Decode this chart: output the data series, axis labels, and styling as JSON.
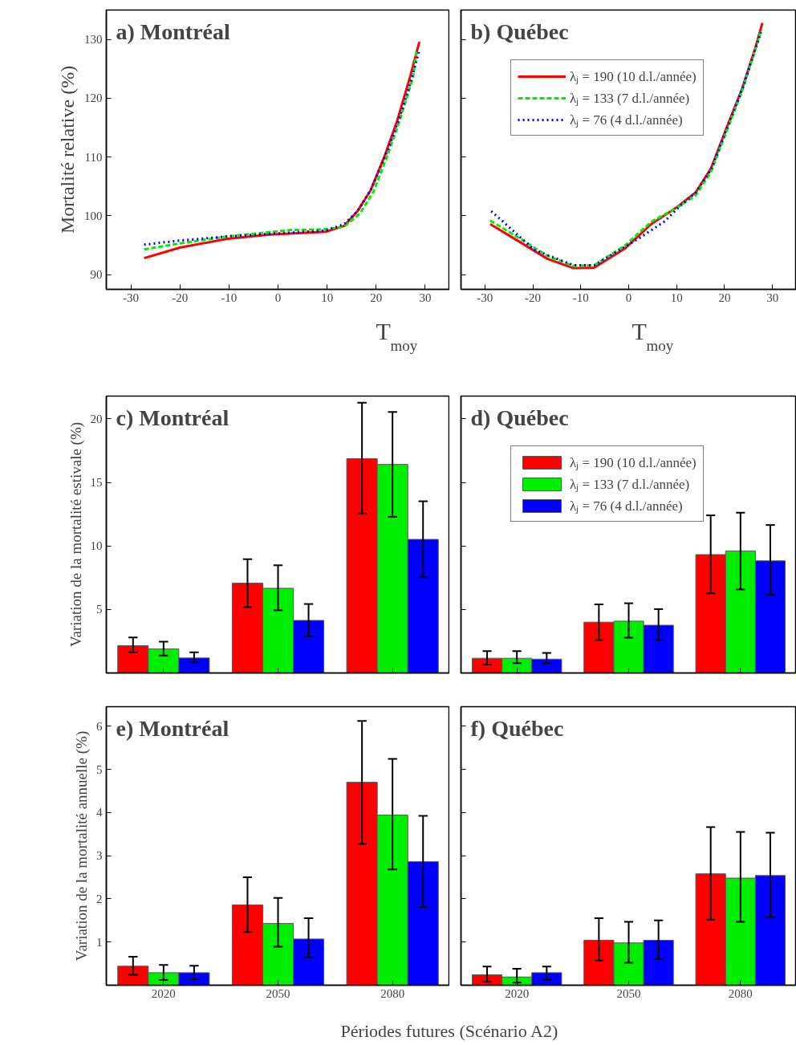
{
  "chart_data": [
    {
      "type": "line",
      "title": "a) Montréal",
      "xlabel": "T$_{moy}$",
      "ylabel": "Mortalité relative (%)",
      "xlim": [
        -35,
        35
      ],
      "ylim": [
        87.5,
        135
      ],
      "xticks": [
        -30,
        -20,
        -10,
        0,
        10,
        20,
        30
      ],
      "yticks": [
        90,
        100,
        110,
        120,
        130
      ],
      "marker": "none",
      "series": [
        {
          "color": "#ff0000",
          "line_style": "solid",
          "x": [
            -27.3,
            -20,
            -10.3,
            -1.7,
            9.7,
            13.5,
            16.2,
            18.9,
            21.6,
            24.3,
            27,
            28.8
          ],
          "values": [
            92.8,
            94.6,
            96.1,
            96.8,
            97.3,
            98.3,
            100.8,
            104.4,
            109.9,
            116.2,
            123.9,
            129.6
          ]
        },
        {
          "color": "#00ee00",
          "line_style": "dashed",
          "x": [
            -27.3,
            -20,
            -10.3,
            2.6,
            9.7,
            13.5,
            16.7,
            19.4,
            22.2,
            24.8,
            27.5,
            28.3
          ],
          "values": [
            94.3,
            95.3,
            96.5,
            97.6,
            97.7,
            98.2,
            100.4,
            104,
            110,
            116.2,
            123.5,
            128.2
          ]
        },
        {
          "color": "#0000ff",
          "line_style": "dotted",
          "x": [
            -27.3,
            -20,
            -10.3,
            9.7,
            13.5,
            16.2,
            18.9,
            22.6,
            25.3,
            27.5,
            28.8
          ],
          "values": [
            95.1,
            95.8,
            96.5,
            97.5,
            98.6,
            100.8,
            104.4,
            111.7,
            118,
            124.1,
            128.2
          ]
        }
      ]
    },
    {
      "type": "line",
      "title": "b) Québec",
      "xlabel": "T$_{moy}$",
      "xlim": [
        -35,
        35
      ],
      "ylim": [
        87.5,
        135
      ],
      "xticks": [
        -30,
        -20,
        -10,
        0,
        10,
        20,
        30
      ],
      "yticks": [
        90,
        100,
        110,
        120,
        130
      ],
      "tick_labels": "x",
      "marker": "none",
      "legend": "top left",
      "series": [
        {
          "name": "λⱼ = 190 (10 d.l./année)",
          "color": "#ff0000",
          "line_style": "solid",
          "x": [
            -28.9,
            -22.4,
            -17,
            -11.5,
            -7.2,
            -0.7,
            4.7,
            10.1,
            14,
            17.2,
            20.4,
            23.7,
            26.4,
            27.9
          ],
          "values": [
            98.6,
            95.4,
            92.7,
            91.1,
            91.2,
            94.5,
            98.6,
            101.5,
            104,
            108.1,
            114.9,
            121.7,
            128.5,
            132.8
          ]
        },
        {
          "name": "λⱼ = 133 (7 d.l./année)",
          "color": "#00ee00",
          "line_style": "dashed",
          "x": [
            -28.9,
            -22.4,
            -17,
            -11.5,
            -7.2,
            -0.7,
            4.7,
            10.1,
            14,
            17.2,
            20.4,
            23.7,
            26.4,
            27.6
          ],
          "values": [
            99.2,
            96,
            93.2,
            91.5,
            91.6,
            95,
            99,
            101.4,
            103.5,
            107.5,
            114.3,
            121.3,
            128.2,
            131.5
          ]
        },
        {
          "name": "λⱼ = 76 (4 d.l./année)",
          "color": "#0000ff",
          "line_style": "dotted",
          "x": [
            -28.7,
            -26.2,
            -19.7,
            -11.5,
            -7.2,
            2,
            7.4,
            10.1,
            14,
            17.2,
            20.4,
            23.7,
            26.4,
            27.6
          ],
          "values": [
            100.8,
            99,
            94.2,
            91.6,
            91.6,
            96.1,
            99,
            101.2,
            104,
            107.9,
            114.7,
            121.5,
            128.3,
            131.2
          ]
        }
      ]
    },
    {
      "type": "bar",
      "title": "c) Montréal",
      "ylabel": "Variation de la mortalité estivale (%)",
      "categories": [
        "2020",
        "2050",
        "2080"
      ],
      "ylim": [
        0,
        21.8
      ],
      "yticks": [
        5,
        10,
        15,
        20
      ],
      "tick_labels": "y",
      "series": [
        {
          "color": "#ff0000",
          "values": [
            2.15,
            7.07,
            16.87
          ],
          "errors": [
            [
              1.62,
              2.8
            ],
            [
              5.19,
              8.96
            ],
            [
              12.56,
              21.28
            ]
          ]
        },
        {
          "color": "#00ee00",
          "values": [
            1.9,
            6.67,
            16.42
          ],
          "errors": [
            [
              1.37,
              2.46
            ],
            [
              4.94,
              8.48
            ],
            [
              12.3,
              20.55
            ]
          ]
        },
        {
          "color": "#0000ff",
          "values": [
            1.18,
            4.14,
            10.52
          ],
          "errors": [
            [
              0.84,
              1.62
            ],
            [
              2.9,
              5.43
            ],
            [
              7.53,
              13.52
            ]
          ]
        }
      ]
    },
    {
      "type": "bar",
      "title": "d) Québec",
      "categories": [
        "2020",
        "2050",
        "2080"
      ],
      "ylim": [
        0,
        21.8
      ],
      "yticks": [
        5,
        10,
        15,
        20
      ],
      "tick_labels": false,
      "legend": "top left",
      "series": [
        {
          "name": "λⱼ = 190 (10 d.l./année)",
          "color": "#ff0000",
          "values": [
            1.16,
            4.0,
            9.32
          ],
          "errors": [
            [
              0.67,
              1.72
            ],
            [
              2.59,
              5.4
            ],
            [
              6.27,
              12.41
            ]
          ]
        },
        {
          "name": "λⱼ = 133 (7 d.l./année)",
          "color": "#00ee00",
          "values": [
            1.16,
            4.08,
            9.61
          ],
          "errors": [
            [
              0.78,
              1.72
            ],
            [
              2.78,
              5.49
            ],
            [
              6.58,
              12.62
            ]
          ]
        },
        {
          "name": "λⱼ = 76 (4 d.l./année)",
          "color": "#0000ff",
          "values": [
            1.09,
            3.76,
            8.83
          ],
          "errors": [
            [
              0.78,
              1.58
            ],
            [
              2.59,
              5.03
            ],
            [
              6.16,
              11.65
            ]
          ]
        }
      ]
    },
    {
      "type": "bar",
      "title": "e) Montréal",
      "xlabel": "Périodes futures (Scénario A2)",
      "ylabel": "Variation de la mortalité annuelle (%)",
      "categories": [
        "2020",
        "2050",
        "2080"
      ],
      "ylim": [
        0,
        6.45
      ],
      "yticks": [
        1,
        2,
        3,
        4,
        5,
        6
      ],
      "series": [
        {
          "color": "#ff0000",
          "values": [
            0.44,
            1.86,
            4.7
          ],
          "errors": [
            [
              0.24,
              0.66
            ],
            [
              1.23,
              2.5
            ],
            [
              3.27,
              6.12
            ]
          ]
        },
        {
          "color": "#00ee00",
          "values": [
            0.29,
            1.43,
            3.94
          ],
          "errors": [
            [
              0.12,
              0.47
            ],
            [
              0.89,
              2.02
            ],
            [
              2.68,
              5.24
            ]
          ]
        },
        {
          "color": "#0000ff",
          "values": [
            0.29,
            1.07,
            2.86
          ],
          "errors": [
            [
              0.14,
              0.45
            ],
            [
              0.65,
              1.55
            ],
            [
              1.81,
              3.92
            ]
          ]
        }
      ]
    },
    {
      "type": "bar",
      "title": "f) Québec",
      "categories": [
        "2020",
        "2050",
        "2080"
      ],
      "ylim": [
        0,
        6.45
      ],
      "yticks": [
        1,
        2,
        3,
        4,
        5,
        6
      ],
      "tick_labels": "x",
      "series": [
        {
          "color": "#ff0000",
          "values": [
            0.24,
            1.04,
            2.58
          ],
          "errors": [
            [
              0.08,
              0.43
            ],
            [
              0.57,
              1.55
            ],
            [
              1.52,
              3.66
            ]
          ]
        },
        {
          "color": "#00ee00",
          "values": [
            0.19,
            0.98,
            2.48
          ],
          "errors": [
            [
              0.06,
              0.38
            ],
            [
              0.52,
              1.47
            ],
            [
              1.47,
              3.55
            ]
          ]
        },
        {
          "color": "#0000ff",
          "values": [
            0.29,
            1.04,
            2.54
          ],
          "errors": [
            [
              0.13,
              0.43
            ],
            [
              0.61,
              1.5
            ],
            [
              1.57,
              3.53
            ]
          ]
        }
      ]
    }
  ]
}
